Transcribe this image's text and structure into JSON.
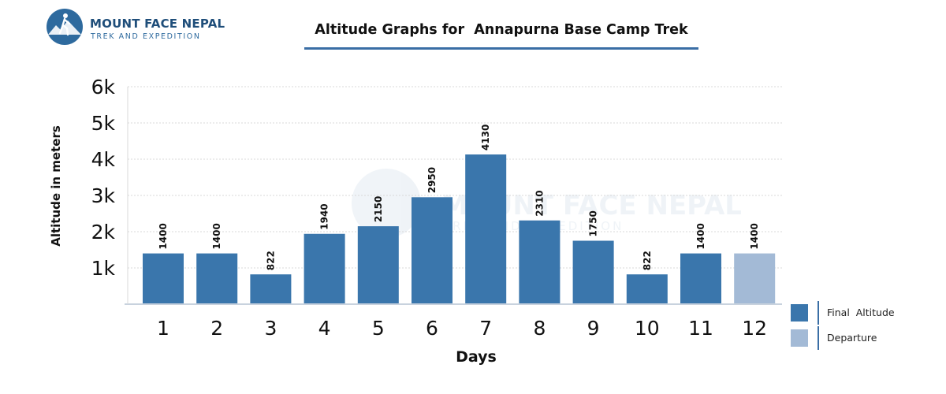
{
  "logo": {
    "name": "MOUNT FACE NEPAL",
    "tagline": "TREK AND EXPEDITION",
    "badge_color": "#2e6a9e",
    "accent_color": "#1f4e7a"
  },
  "watermark": {
    "line1": "MOUNT FACE NEPAL",
    "line2": "TREK AND EXPEDITION"
  },
  "colors": {
    "final_altitude": "#3a76ac",
    "departure": "#a3bad6",
    "grid": "#d9d9d9",
    "axis": "#c8d2de"
  },
  "legend": {
    "items": [
      {
        "label": "Final  Altitude",
        "color": "#3a76ac"
      },
      {
        "label": "Departure",
        "color": "#a3bad6"
      }
    ]
  },
  "chart_data": {
    "type": "bar",
    "title": "Altitude Graphs for  Annapurna Base Camp Trek",
    "xlabel": "Days",
    "ylabel": "Altitude in meters",
    "categories": [
      "1",
      "2",
      "3",
      "4",
      "5",
      "6",
      "7",
      "8",
      "9",
      "10",
      "11",
      "12"
    ],
    "values": [
      1400,
      1400,
      822,
      1940,
      2150,
      2950,
      4130,
      2310,
      1750,
      822,
      1400,
      1400
    ],
    "data_labels": [
      "1400",
      "1400",
      "822",
      "1940",
      "2150",
      "2950",
      "4130",
      "2310",
      "1750",
      "822",
      "1400",
      "1400"
    ],
    "series_type": [
      "Final Altitude",
      "Final Altitude",
      "Final Altitude",
      "Final Altitude",
      "Final Altitude",
      "Final Altitude",
      "Final Altitude",
      "Final Altitude",
      "Final Altitude",
      "Final Altitude",
      "Final Altitude",
      "Departure"
    ],
    "ylim": [
      0,
      6000
    ],
    "yticks": [
      1000,
      2000,
      3000,
      4000,
      5000,
      6000
    ],
    "ytick_labels": [
      "1k",
      "2k",
      "3k",
      "4k",
      "5k",
      "6k"
    ],
    "grid": true,
    "legend_position": "bottom-right"
  }
}
